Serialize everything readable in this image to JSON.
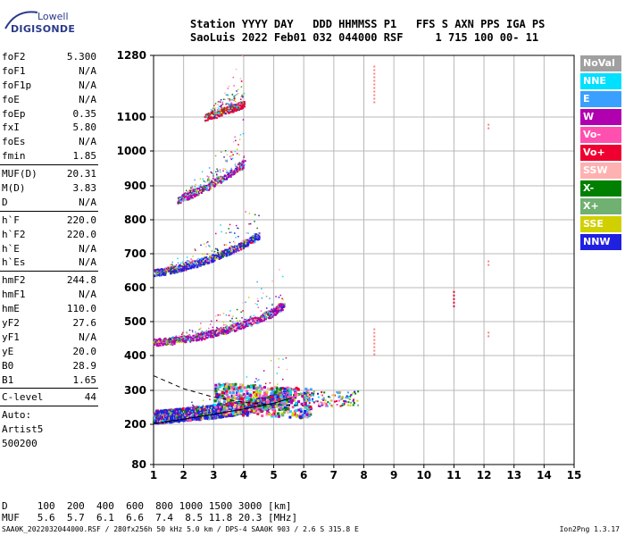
{
  "logo": {
    "line1": "Lowell",
    "line2": "DIGISONDE"
  },
  "header": {
    "line1": "Station YYYY DAY   DDD HHMMSS P1   FFS S AXN PPS IGA PS",
    "line2": "SaoLuis 2022 Feb01 032 044000 RSF     1 715 100 00- 11"
  },
  "params_group1": [
    {
      "k": "foF2",
      "v": "5.300"
    },
    {
      "k": "foF1",
      "v": "N/A"
    },
    {
      "k": "foF1p",
      "v": "N/A"
    },
    {
      "k": "foE",
      "v": "N/A"
    },
    {
      "k": "foEp",
      "v": "0.35"
    },
    {
      "k": "fxI",
      "v": "5.80"
    },
    {
      "k": "foEs",
      "v": "N/A"
    },
    {
      "k": "fmin",
      "v": "1.85"
    }
  ],
  "params_group2": [
    {
      "k": "MUF(D)",
      "v": "20.31"
    },
    {
      "k": "M(D)",
      "v": "3.83"
    },
    {
      "k": "D",
      "v": "N/A"
    }
  ],
  "params_group3": [
    {
      "k": "h`F",
      "v": "220.0"
    },
    {
      "k": "h`F2",
      "v": "220.0"
    },
    {
      "k": "h`E",
      "v": "N/A"
    },
    {
      "k": "h`Es",
      "v": "N/A"
    }
  ],
  "params_group4": [
    {
      "k": "hmF2",
      "v": "244.8"
    },
    {
      "k": "hmF1",
      "v": "N/A"
    },
    {
      "k": "hmE",
      "v": "110.0"
    },
    {
      "k": "yF2",
      "v": "27.6"
    },
    {
      "k": "yF1",
      "v": "N/A"
    },
    {
      "k": "yE",
      "v": "20.0"
    },
    {
      "k": "B0",
      "v": "28.9"
    },
    {
      "k": "B1",
      "v": "1.65"
    }
  ],
  "params_group5": [
    {
      "k": "C-level",
      "v": "44"
    }
  ],
  "auto": {
    "l1": "Auto:",
    "l2": "Artist5",
    "l3": "500200"
  },
  "legend": [
    {
      "label": "NoVal",
      "color": "#a0a0a0"
    },
    {
      "label": "NNE",
      "color": "#00e0ff"
    },
    {
      "label": "E",
      "color": "#3aa0ff"
    },
    {
      "label": "W",
      "color": "#b000b0"
    },
    {
      "label": "Vo-",
      "color": "#ff50b0"
    },
    {
      "label": "Vo+",
      "color": "#ee0030"
    },
    {
      "label": "SSW",
      "color": "#ffb0b0"
    },
    {
      "label": "X-",
      "color": "#008000"
    },
    {
      "label": "X+",
      "color": "#70b070"
    },
    {
      "label": "SSE",
      "color": "#d0d000"
    },
    {
      "label": "NNW",
      "color": "#2020e0"
    }
  ],
  "freq_table": {
    "row1": "D     100  200  400  600  800 1000 1500 3000 [km]",
    "row2": "MUF   5.6  5.7  6.1  6.6  7.4  8.5 11.8 20.3 [MHz]"
  },
  "footer": {
    "left": "SAA0K_2022032044000.RSF / 280fx256h 50 kHz 5.0 km / DPS-4 SAA0K 903 / 2.6 S 315.8 E",
    "right": "Ion2Png 1.3.17"
  },
  "chart_data": {
    "type": "scatter",
    "title": "",
    "xlabel": "",
    "ylabel": "",
    "xlim": [
      1,
      15
    ],
    "ylim": [
      80,
      1280
    ],
    "x_ticks": [
      1,
      2,
      3,
      4,
      5,
      6,
      7,
      8,
      9,
      10,
      11,
      12,
      13,
      14,
      15
    ],
    "y_ticks": [
      80,
      200,
      300,
      400,
      500,
      600,
      700,
      800,
      900,
      1000,
      1100,
      1280
    ],
    "grid": true,
    "traces": [
      {
        "name": "F2 trace 1",
        "color": "#2020e0",
        "points": [
          [
            1.0,
            225
          ],
          [
            1.5,
            228
          ],
          [
            2.0,
            232
          ],
          [
            2.5,
            236
          ],
          [
            3.0,
            241
          ],
          [
            3.5,
            247
          ],
          [
            4.0,
            254
          ],
          [
            4.5,
            262
          ],
          [
            5.0,
            272
          ],
          [
            5.3,
            282
          ],
          [
            5.5,
            292
          ]
        ]
      },
      {
        "name": "F2 trace 2",
        "color": "#b000b0",
        "points": [
          [
            1.0,
            440
          ],
          [
            1.5,
            444
          ],
          [
            2.0,
            450
          ],
          [
            2.5,
            458
          ],
          [
            3.0,
            468
          ],
          [
            3.5,
            480
          ],
          [
            4.0,
            494
          ],
          [
            4.5,
            510
          ],
          [
            5.0,
            530
          ],
          [
            5.3,
            550
          ]
        ]
      },
      {
        "name": "F2 trace 3",
        "color": "#2020e0",
        "points": [
          [
            1.0,
            645
          ],
          [
            1.5,
            652
          ],
          [
            2.0,
            662
          ],
          [
            2.5,
            674
          ],
          [
            3.0,
            690
          ],
          [
            3.5,
            708
          ],
          [
            4.0,
            730
          ],
          [
            4.5,
            755
          ]
        ]
      },
      {
        "name": "F2 trace 4",
        "color": "#b000b0",
        "points": [
          [
            1.8,
            860
          ],
          [
            2.2,
            875
          ],
          [
            2.8,
            900
          ],
          [
            3.5,
            935
          ],
          [
            4.0,
            965
          ]
        ]
      },
      {
        "name": "F2 trace 5",
        "color": "#ee0030",
        "points": [
          [
            2.7,
            1100
          ],
          [
            3.2,
            1115
          ],
          [
            3.7,
            1130
          ],
          [
            4.0,
            1140
          ]
        ]
      }
    ],
    "model_lines": [
      {
        "style": "solid",
        "points": [
          [
            1.0,
            203
          ],
          [
            2.0,
            215
          ],
          [
            3.0,
            230
          ],
          [
            4.0,
            245
          ],
          [
            5.0,
            262
          ],
          [
            5.6,
            278
          ]
        ]
      },
      {
        "style": "dashed",
        "points": [
          [
            1.0,
            342
          ],
          [
            2.0,
            305
          ],
          [
            3.0,
            280
          ],
          [
            4.0,
            265
          ],
          [
            5.0,
            258
          ],
          [
            6.0,
            255
          ]
        ]
      }
    ],
    "isolated_echoes": [
      {
        "x": 8.35,
        "y_range": [
          1140,
          1250
        ],
        "color": "#ff8080"
      },
      {
        "x": 8.35,
        "y_range": [
          400,
          480
        ],
        "color": "#ff8080"
      },
      {
        "x": 11.0,
        "y_range": [
          540,
          590
        ],
        "color": "#ee0030"
      },
      {
        "x": 12.15,
        "y_range": [
          1060,
          1080
        ],
        "color": "#ff8080"
      },
      {
        "x": 12.15,
        "y_range": [
          660,
          680
        ],
        "color": "#ff8080"
      },
      {
        "x": 12.15,
        "y_range": [
          450,
          470
        ],
        "color": "#ff8080"
      }
    ]
  }
}
